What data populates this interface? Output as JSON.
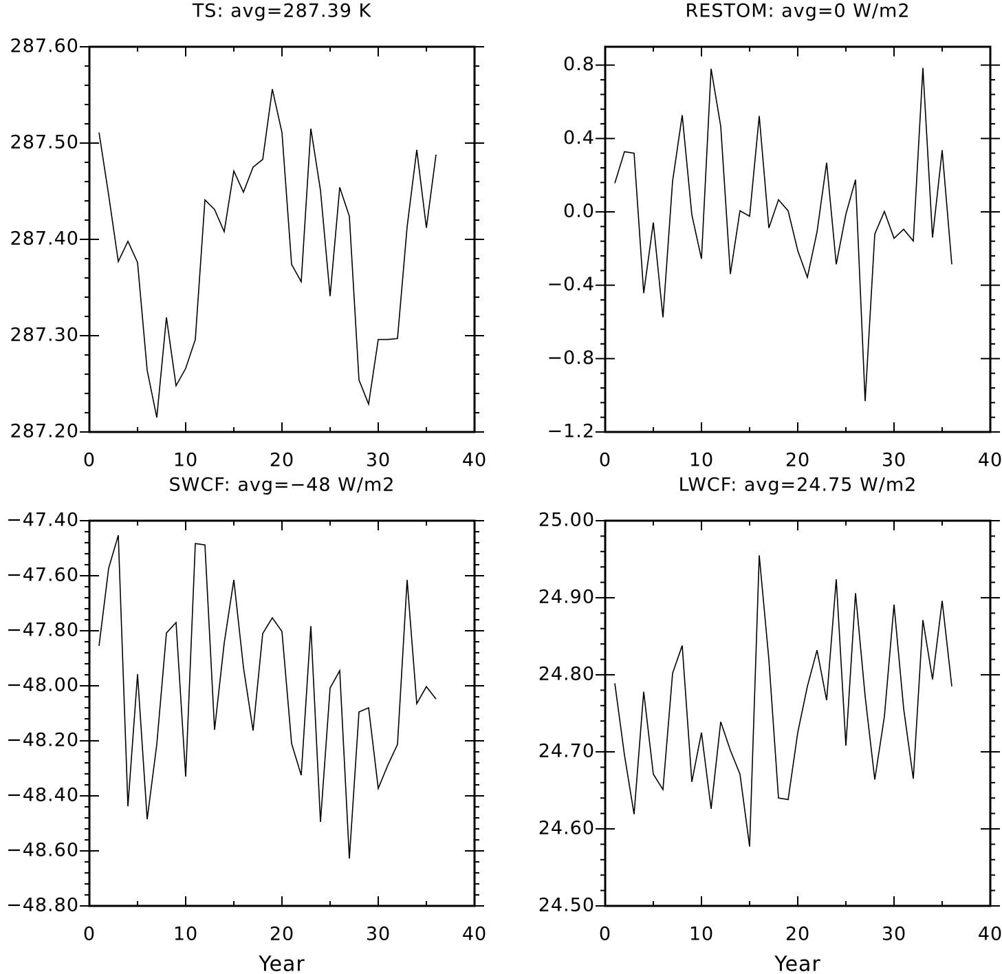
{
  "chart_data": [
    {
      "type": "line",
      "title": "TS: avg=287.39 K",
      "color": "#000000",
      "x": [
        1,
        2,
        3,
        4,
        5,
        6,
        7,
        8,
        9,
        10,
        11,
        12,
        13,
        14,
        15,
        16,
        17,
        18,
        19,
        20,
        21,
        22,
        23,
        24,
        25,
        26,
        27,
        28,
        29,
        30,
        31,
        32,
        33,
        34,
        35,
        36
      ],
      "values": [
        287.511,
        287.446,
        287.377,
        287.398,
        287.376,
        287.264,
        287.215,
        287.319,
        287.248,
        287.266,
        287.296,
        287.441,
        287.431,
        287.408,
        287.471,
        287.449,
        287.475,
        287.483,
        287.556,
        287.511,
        287.374,
        287.356,
        287.515,
        287.451,
        287.341,
        287.454,
        287.424,
        287.254,
        287.229,
        287.296,
        287.296,
        287.297,
        287.413,
        287.493,
        287.412,
        287.488
      ],
      "xlim": [
        0,
        40
      ],
      "xticks": [
        0,
        10,
        20,
        30,
        40
      ],
      "ylim": [
        287.2,
        287.6
      ],
      "yticks": [
        {
          "value": 287.2,
          "label": "287.20"
        },
        {
          "value": 287.3,
          "label": "287.30"
        },
        {
          "value": 287.4,
          "label": "287.40"
        },
        {
          "value": 287.5,
          "label": "287.50"
        },
        {
          "value": 287.6,
          "label": "287.60"
        }
      ]
    },
    {
      "type": "line",
      "title": "RESTOM: avg=0 W/m2",
      "color": "#000000",
      "x": [
        1,
        2,
        3,
        4,
        5,
        6,
        7,
        8,
        9,
        10,
        11,
        12,
        13,
        14,
        15,
        16,
        17,
        18,
        19,
        20,
        21,
        22,
        23,
        24,
        25,
        26,
        27,
        28,
        29,
        30,
        31,
        32,
        33,
        34,
        35,
        36
      ],
      "values": [
        0.156,
        0.328,
        0.32,
        -0.443,
        -0.058,
        -0.575,
        0.167,
        0.527,
        -0.016,
        -0.256,
        0.78,
        0.467,
        -0.339,
        0.006,
        -0.024,
        0.523,
        -0.088,
        0.066,
        0.006,
        -0.211,
        -0.357,
        -0.11,
        0.268,
        -0.286,
        -0.013,
        0.175,
        -1.032,
        -0.121,
        0.002,
        -0.144,
        -0.095,
        -0.159,
        0.785,
        -0.14,
        0.336,
        -0.286
      ],
      "xlim": [
        0,
        40
      ],
      "xticks": [
        0,
        10,
        20,
        30,
        40
      ],
      "ylim": [
        -1.2,
        0.9
      ],
      "yticks": [
        {
          "value": -1.2,
          "label": "−1.2"
        },
        {
          "value": -0.8,
          "label": "−0.8"
        },
        {
          "value": -0.4,
          "label": "−0.4"
        },
        {
          "value": 0,
          "label": "0.0"
        },
        0.4,
        0.8
      ]
    },
    {
      "type": "line",
      "title": "SWCF: avg=−48 W/m2",
      "xlabel": "Year",
      "color": "#000000",
      "x": [
        1,
        2,
        3,
        4,
        5,
        6,
        7,
        8,
        9,
        10,
        11,
        12,
        13,
        14,
        15,
        16,
        17,
        18,
        19,
        20,
        21,
        22,
        23,
        24,
        25,
        26,
        27,
        28,
        29,
        30,
        31,
        32,
        33,
        34,
        35,
        36
      ],
      "values": [
        -47.855,
        -47.573,
        -47.453,
        -48.438,
        -47.958,
        -48.485,
        -48.213,
        -47.808,
        -47.77,
        -48.33,
        -47.483,
        -47.488,
        -48.16,
        -47.845,
        -47.615,
        -47.933,
        -48.163,
        -47.81,
        -47.753,
        -47.803,
        -48.21,
        -48.325,
        -47.783,
        -48.495,
        -48.008,
        -47.945,
        -48.628,
        -48.095,
        -48.08,
        -48.373,
        -48.288,
        -48.213,
        -47.615,
        -48.065,
        -48.003,
        -48.048
      ],
      "xlim": [
        0,
        40
      ],
      "xticks": [
        0,
        10,
        20,
        30,
        40
      ],
      "ylim": [
        -48.8,
        -47.4
      ],
      "yticks": [
        {
          "value": -48.8,
          "label": "−48.80"
        },
        {
          "value": -48.6,
          "label": "−48.60"
        },
        {
          "value": -48.4,
          "label": "−48.40"
        },
        {
          "value": -48.2,
          "label": "−48.20"
        },
        {
          "value": -48.0,
          "label": "−48.00"
        },
        {
          "value": -47.8,
          "label": "−47.80"
        },
        {
          "value": -47.6,
          "label": "−47.60"
        },
        {
          "value": -47.4,
          "label": "−47.40"
        }
      ]
    },
    {
      "type": "line",
      "title": "LWCF: avg=24.75 W/m2",
      "xlabel": "Year",
      "color": "#000000",
      "x": [
        1,
        2,
        3,
        4,
        5,
        6,
        7,
        8,
        9,
        10,
        11,
        12,
        13,
        14,
        15,
        16,
        17,
        18,
        19,
        20,
        21,
        22,
        23,
        24,
        25,
        26,
        27,
        28,
        29,
        30,
        31,
        32,
        33,
        34,
        35,
        36
      ],
      "values": [
        24.789,
        24.696,
        24.619,
        24.778,
        24.671,
        24.651,
        24.802,
        24.838,
        24.661,
        24.725,
        24.626,
        24.739,
        24.702,
        24.671,
        24.577,
        24.955,
        24.82,
        24.64,
        24.638,
        24.725,
        24.785,
        24.832,
        24.767,
        24.924,
        24.708,
        24.906,
        24.772,
        24.664,
        24.746,
        24.891,
        24.756,
        24.665,
        24.871,
        24.794,
        24.896,
        24.785
      ],
      "xlim": [
        0,
        40
      ],
      "xticks": [
        0,
        10,
        20,
        30,
        40
      ],
      "ylim": [
        24.5,
        25.0
      ],
      "yticks": [
        {
          "value": 24.5,
          "label": "24.50"
        },
        {
          "value": 24.6,
          "label": "24.60"
        },
        {
          "value": 24.7,
          "label": "24.70"
        },
        {
          "value": 24.8,
          "label": "24.80"
        },
        {
          "value": 24.9,
          "label": "24.90"
        },
        {
          "value": 25.0,
          "label": "25.00"
        }
      ]
    }
  ]
}
